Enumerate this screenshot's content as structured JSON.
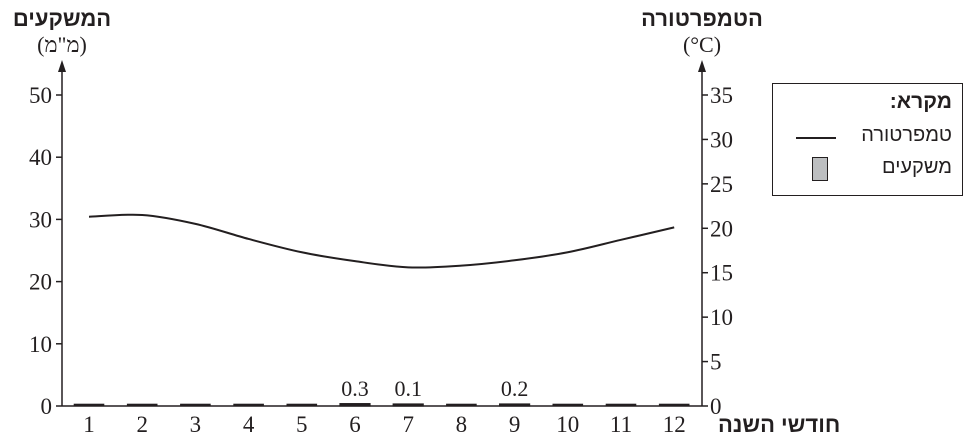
{
  "chart_data": {
    "type": "bar+line",
    "left_axis": {
      "title": "המשקעים",
      "unit": "(מ\"מ)",
      "ticks": [
        "0",
        "10",
        "20",
        "30",
        "40",
        "50"
      ],
      "ylim": [
        0,
        50
      ]
    },
    "right_axis": {
      "title": "הטמפרטורה",
      "unit": "(°C)",
      "ticks": [
        "0",
        "5",
        "10",
        "15",
        "20",
        "25",
        "30",
        "35"
      ],
      "ylim": [
        0,
        35
      ]
    },
    "xlabel": "חודשי השנה",
    "categories": [
      "1",
      "2",
      "3",
      "4",
      "5",
      "6",
      "7",
      "8",
      "9",
      "10",
      "11",
      "12"
    ],
    "series": [
      {
        "name": "משקעים",
        "type": "bar",
        "axis": "left",
        "values": [
          0,
          0,
          0,
          0,
          0,
          0.3,
          0.1,
          0,
          0.2,
          0,
          0,
          0
        ],
        "labels": [
          "",
          "",
          "",
          "",
          "",
          "0.3",
          "0.1",
          "",
          "0.2",
          "",
          "",
          ""
        ]
      },
      {
        "name": "טמפרטורה",
        "type": "line",
        "axis": "right",
        "values": [
          21.3,
          21.5,
          20.5,
          18.8,
          17.3,
          16.3,
          15.6,
          15.8,
          16.4,
          17.3,
          18.7,
          20.1
        ]
      }
    ],
    "legend": {
      "title": "מקרא:",
      "position": "right",
      "items": [
        {
          "label": "טמפרטורה",
          "symbol": "line"
        },
        {
          "label": "משקעים",
          "symbol": "bar"
        }
      ]
    },
    "colors": {
      "ink": "#231f20",
      "bar": "#bcbec0"
    }
  }
}
